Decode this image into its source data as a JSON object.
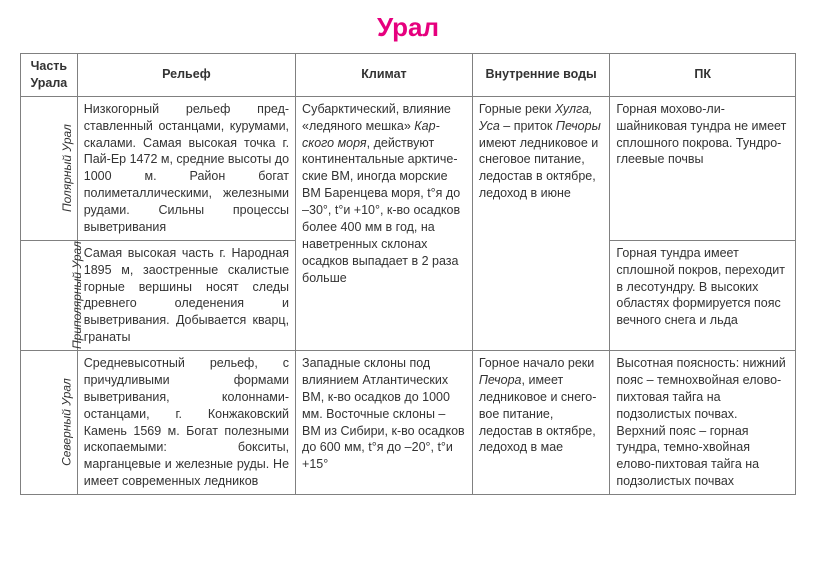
{
  "title": "Урал",
  "title_color": "#e6007e",
  "background_color": "#ffffff",
  "border_color": "#808080",
  "font_size_body": 12.5,
  "font_size_title": 26,
  "columns": {
    "part": "Часть Урала",
    "relief": "Рельеф",
    "climate": "Климат",
    "water": "Внутренние воды",
    "pk": "ПК"
  },
  "rows": [
    {
      "part": "Полярный Урал",
      "relief": "Низкогорный рельеф пред­ставленный останцами, курумами, скалами. Са­мая высокая точка г. Пай-Ер 1472 м, средние высо­ты до 1000 м. Район богат полиметаллическими, же­лезными рудами. Сильны процессы выветривания",
      "pk": "Горная мохово-ли­шайниковая тундра не имеет сплошного покрова.\nТундро-глеевые почвы"
    },
    {
      "part": "Приполярный Урал",
      "relief": "Самая высокая часть г. Народная 1895 м, за­остренные скалистые гор­ные вершины носят следы древнего оледенения и выветривания. Добывает­ся кварц, гранаты",
      "pk": "Горная тундра имеет сплошной покров, переходит в лесо­тундру.\nВ высоких областях формируется пояс вечного снега и льда"
    },
    {
      "part": "Северный Урал",
      "relief": "Средневысотный рельеф, с причудливыми формами выветривания, колоннами-останцами, г. Конжаков­ский Камень 1569 м. Богат полезными ископаемы­ми: бокситы, марганцевые и железные руды. Не имеет современных ледников",
      "climate": "Западные склоны под влиянием Ат­лантических ВМ, к-во осадков до 1000 мм. Восточ­ные склоны – ВМ из Сибири, к-во осадков до 600 мм, t°я до –20°, t°и +15°",
      "water_html": "Горное на­чало реки <em>Печора</em>, име­ет леднико­вое и снего­вое питание, ледостав в октябре, ле­доход в мае",
      "pk": "Высотная поясность: нижний пояс – тем­нохвойная елово-пихтовая тайга на подзолистых поч­вах. Верхний пояс – горная тундра, тем­но-хвойная елово-пихтовая тайга на подзолистых почвах"
    }
  ],
  "merged_climate_html": "Субарктический, влияние «ледяно­го мешка» <em>Кар­ского моря</em>, дей­ствуют континен­тальные арктиче­ские ВМ, иногда морские ВМ Ба­ренцева моря, t°я до –30°, t°и +10°, к-во осадков бо­лее 400 мм в год, на наветренных склонах осадков выпадает в 2 раза больше",
  "merged_water_html": "Горные реки <em>Хулга, Уса</em> – приток <em>Пе­чоры</em> имеют ледниковое и снеговое питание, ледостав в октябре, ледоход в июне"
}
